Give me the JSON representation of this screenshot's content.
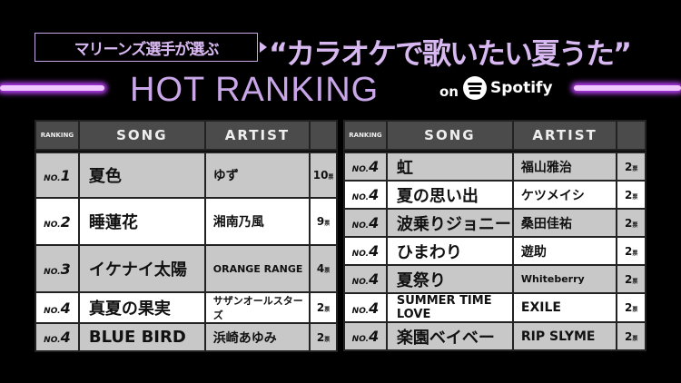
{
  "header": {
    "subtitle": "マリーンズ選手が選ぶ",
    "title": "“カラオケで歌いたい夏うた”",
    "hot": "HOT RANKING",
    "on": "on",
    "spotify": "Spotify",
    "accent": "#c9a6e8"
  },
  "columns": {
    "ranking": "RANKING",
    "song": "SONG",
    "artist": "ARTIST"
  },
  "vote_unit": "票",
  "left": [
    {
      "no": "NO.",
      "rank": "1",
      "song": "夏色",
      "artist": "ゆず",
      "votes": "10"
    },
    {
      "no": "NO.",
      "rank": "2",
      "song": "睡蓮花",
      "artist": "湘南乃風",
      "votes": "9"
    },
    {
      "no": "NO.",
      "rank": "3",
      "song": "イケナイ太陽",
      "artist": "ORANGE RANGE",
      "votes": "4"
    },
    {
      "no": "NO.",
      "rank": "4",
      "song": "真夏の果実",
      "artist": "サザンオールスターズ",
      "votes": "2"
    },
    {
      "no": "NO.",
      "rank": "4",
      "song": "BLUE BIRD",
      "artist": "浜崎あゆみ",
      "votes": "2"
    }
  ],
  "right": [
    {
      "no": "NO.",
      "rank": "4",
      "song": "虹",
      "artist": "福山雅治",
      "votes": "2"
    },
    {
      "no": "NO.",
      "rank": "4",
      "song": "夏の思い出",
      "artist": "ケツメイシ",
      "votes": "2"
    },
    {
      "no": "NO.",
      "rank": "4",
      "song": "波乗りジョニー",
      "artist": "桑田佳祐",
      "votes": "2"
    },
    {
      "no": "NO.",
      "rank": "4",
      "song": "ひまわり",
      "artist": "遊助",
      "votes": "2"
    },
    {
      "no": "NO.",
      "rank": "4",
      "song": "夏祭り",
      "artist": "Whiteberry",
      "votes": "2"
    },
    {
      "no": "NO.",
      "rank": "4",
      "song": "SUMMER TIME LOVE",
      "artist": "EXILE",
      "votes": "2"
    },
    {
      "no": "NO.",
      "rank": "4",
      "song": "楽園ベイベー",
      "artist": "RIP SLYME",
      "votes": "2"
    }
  ]
}
